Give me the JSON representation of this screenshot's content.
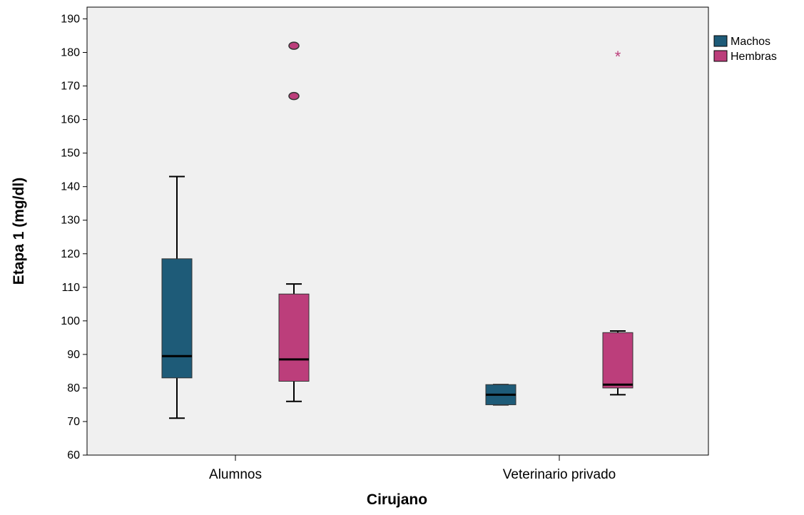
{
  "chart_data": {
    "type": "boxplot",
    "xlabel": "Cirujano",
    "ylabel": "Etapa 1 (mg/dl)",
    "ylim": [
      60,
      190
    ],
    "yticks": [
      60,
      70,
      80,
      90,
      100,
      110,
      120,
      130,
      140,
      150,
      160,
      170,
      180,
      190
    ],
    "categories": [
      "Alumnos",
      "Veterinario privado"
    ],
    "grid": false,
    "legend_position": "top-right",
    "series": [
      {
        "name": "Machos",
        "color": "#1e5b78",
        "boxes": [
          {
            "whisker_low": 71,
            "q1": 83,
            "median": 89.5,
            "q3": 118.5,
            "whisker_high": 143,
            "outliers": [],
            "extremes": []
          },
          {
            "whisker_low": 75,
            "q1": 75,
            "median": 78,
            "q3": 81,
            "whisker_high": 81,
            "outliers": [],
            "extremes": []
          }
        ]
      },
      {
        "name": "Hembras",
        "color": "#bc3e7b",
        "boxes": [
          {
            "whisker_low": 76,
            "q1": 82,
            "median": 88.5,
            "q3": 108,
            "whisker_high": 111,
            "outliers": [
              167,
              182
            ],
            "extremes": []
          },
          {
            "whisker_low": 78,
            "q1": 80,
            "median": 81,
            "q3": 96.5,
            "whisker_high": 97,
            "outliers": [],
            "extremes": [
              179
            ]
          }
        ]
      }
    ]
  }
}
